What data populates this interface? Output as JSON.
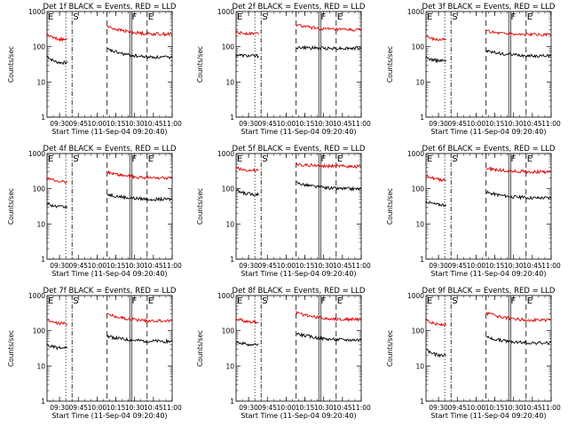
{
  "figure": {
    "panels_per_row": 3
  },
  "chart_data": [
    {
      "type": "line",
      "title": "Det 1f BLACK = Events, RED = LLD",
      "xlabel": "Start Time (11-Sep-04 09:20:40)",
      "ylabel": "Counts/sec",
      "y_scale": "log",
      "ylim": [
        1,
        1000
      ],
      "xlim": [
        "09:20",
        "11:00"
      ],
      "x_ticks": [
        "09:30",
        "09:45",
        "10:00",
        "10:15",
        "10:30",
        "10:45",
        "11:00"
      ],
      "y_ticks": [
        "1",
        "10",
        "100",
        "1000"
      ],
      "grid": false,
      "markers": [
        {
          "label": "E",
          "time": "09:20",
          "style": "solid"
        },
        {
          "label": "S",
          "time": "09:40",
          "style": "dash-dot"
        },
        {
          "label": "F",
          "time": "10:27",
          "style": "solid"
        },
        {
          "label": "E",
          "time": "10:40",
          "style": "dashed"
        }
      ],
      "vlines": [
        {
          "time": "09:35",
          "style": "dotted"
        },
        {
          "time": "09:40",
          "style": "dash-dot"
        },
        {
          "time": "10:08",
          "style": "dashed"
        },
        {
          "time": "10:27",
          "style": "double"
        },
        {
          "time": "10:40",
          "style": "dashed"
        }
      ],
      "series": [
        {
          "color": "#000000",
          "segments": [
            {
              "from": "09:20",
              "to": "09:36",
              "start": 55,
              "end": 35
            },
            {
              "from": "10:08",
              "to": "11:00",
              "start": 85,
              "end": 50
            }
          ]
        },
        {
          "color": "#e00000",
          "segments": [
            {
              "from": "09:20",
              "to": "09:36",
              "start": 230,
              "end": 160
            },
            {
              "from": "10:08",
              "to": "11:00",
              "start": 380,
              "end": 230
            }
          ]
        }
      ]
    },
    {
      "type": "line",
      "title": "Det 2f BLACK = Events, RED = LLD",
      "xlabel": "Start Time (11-Sep-04 09:20:40)",
      "ylabel": "Counts/sec",
      "y_scale": "log",
      "ylim": [
        1,
        1000
      ],
      "xlim": [
        "09:20",
        "11:00"
      ],
      "x_ticks": [
        "09:30",
        "09:45",
        "10:00",
        "10:15",
        "10:30",
        "10:45",
        "11:00"
      ],
      "y_ticks": [
        "1",
        "10",
        "100",
        "1000"
      ],
      "grid": false,
      "markers": [
        {
          "label": "E",
          "time": "09:20",
          "style": "solid"
        },
        {
          "label": "S",
          "time": "09:40",
          "style": "dash-dot"
        },
        {
          "label": "F",
          "time": "10:27",
          "style": "solid"
        },
        {
          "label": "E",
          "time": "10:40",
          "style": "dashed"
        }
      ],
      "vlines": [
        {
          "time": "09:35",
          "style": "dotted"
        },
        {
          "time": "09:40",
          "style": "dash-dot"
        },
        {
          "time": "10:08",
          "style": "dashed"
        },
        {
          "time": "10:27",
          "style": "double"
        },
        {
          "time": "10:40",
          "style": "dashed"
        }
      ],
      "series": [
        {
          "color": "#000000",
          "segments": [
            {
              "from": "09:20",
              "to": "09:38",
              "start": 60,
              "end": 55
            },
            {
              "from": "10:08",
              "to": "11:00",
              "start": 95,
              "end": 90
            }
          ]
        },
        {
          "color": "#e00000",
          "segments": [
            {
              "from": "09:20",
              "to": "09:38",
              "start": 250,
              "end": 240
            },
            {
              "from": "10:08",
              "to": "11:00",
              "start": 420,
              "end": 300
            }
          ]
        }
      ]
    },
    {
      "type": "line",
      "title": "Det 3f BLACK = Events, RED = LLD",
      "xlabel": "Start Time (11-Sep-04 09:20:40)",
      "ylabel": "Counts/sec",
      "y_scale": "log",
      "ylim": [
        1,
        1000
      ],
      "xlim": [
        "09:20",
        "11:00"
      ],
      "x_ticks": [
        "09:30",
        "09:45",
        "10:00",
        "10:15",
        "10:30",
        "10:45",
        "11:00"
      ],
      "y_ticks": [
        "1",
        "10",
        "100",
        "1000"
      ],
      "grid": false,
      "markers": [
        {
          "label": "E",
          "time": "09:20",
          "style": "solid"
        },
        {
          "label": "S",
          "time": "09:40",
          "style": "dash-dot"
        },
        {
          "label": "F",
          "time": "10:27",
          "style": "solid"
        },
        {
          "label": "E",
          "time": "10:40",
          "style": "dashed"
        }
      ],
      "vlines": [
        {
          "time": "09:35",
          "style": "dotted"
        },
        {
          "time": "09:40",
          "style": "dash-dot"
        },
        {
          "time": "10:08",
          "style": "dashed"
        },
        {
          "time": "10:27",
          "style": "double"
        },
        {
          "time": "10:40",
          "style": "dashed"
        }
      ],
      "series": [
        {
          "color": "#000000",
          "segments": [
            {
              "from": "09:20",
              "to": "09:36",
              "start": 50,
              "end": 40
            },
            {
              "from": "10:08",
              "to": "11:00",
              "start": 75,
              "end": 55
            }
          ]
        },
        {
          "color": "#e00000",
          "segments": [
            {
              "from": "09:20",
              "to": "09:36",
              "start": 200,
              "end": 160
            },
            {
              "from": "10:08",
              "to": "11:00",
              "start": 280,
              "end": 220
            }
          ]
        }
      ]
    },
    {
      "type": "line",
      "title": "Det 4f BLACK = Events, RED = LLD",
      "xlabel": "Start Time (11-Sep-04 09:20:40)",
      "ylabel": "Counts/sec",
      "y_scale": "log",
      "ylim": [
        1,
        1000
      ],
      "xlim": [
        "09:20",
        "11:00"
      ],
      "x_ticks": [
        "09:30",
        "09:45",
        "10:00",
        "10:15",
        "10:30",
        "10:45",
        "11:00"
      ],
      "y_ticks": [
        "1",
        "10",
        "100",
        "1000"
      ],
      "grid": false,
      "markers": [
        {
          "label": "E",
          "time": "09:20",
          "style": "solid"
        },
        {
          "label": "S",
          "time": "09:40",
          "style": "dash-dot"
        },
        {
          "label": "F",
          "time": "10:27",
          "style": "solid"
        },
        {
          "label": "E",
          "time": "10:40",
          "style": "dashed"
        }
      ],
      "vlines": [
        {
          "time": "09:35",
          "style": "dotted"
        },
        {
          "time": "09:40",
          "style": "dash-dot"
        },
        {
          "time": "10:08",
          "style": "dashed"
        },
        {
          "time": "10:27",
          "style": "double"
        },
        {
          "time": "10:40",
          "style": "dashed"
        }
      ],
      "series": [
        {
          "color": "#000000",
          "segments": [
            {
              "from": "09:20",
              "to": "09:36",
              "start": 40,
              "end": 30
            },
            {
              "from": "10:08",
              "to": "11:00",
              "start": 70,
              "end": 50
            }
          ]
        },
        {
          "color": "#e00000",
          "segments": [
            {
              "from": "09:20",
              "to": "09:36",
              "start": 210,
              "end": 160
            },
            {
              "from": "10:08",
              "to": "11:00",
              "start": 300,
              "end": 200
            }
          ]
        }
      ]
    },
    {
      "type": "line",
      "title": "Det 5f BLACK = Events, RED = LLD",
      "xlabel": "Start Time (11-Sep-04 09:20:40)",
      "ylabel": "Counts/sec",
      "y_scale": "log",
      "ylim": [
        1,
        1000
      ],
      "xlim": [
        "09:20",
        "11:00"
      ],
      "x_ticks": [
        "09:30",
        "09:45",
        "10:00",
        "10:15",
        "10:30",
        "10:45",
        "11:00"
      ],
      "y_ticks": [
        "1",
        "10",
        "100",
        "1000"
      ],
      "grid": false,
      "markers": [
        {
          "label": "E",
          "time": "09:20",
          "style": "solid"
        },
        {
          "label": "S",
          "time": "09:40",
          "style": "dash-dot"
        },
        {
          "label": "F",
          "time": "10:27",
          "style": "solid"
        },
        {
          "label": "E",
          "time": "10:40",
          "style": "dashed"
        }
      ],
      "vlines": [
        {
          "time": "09:35",
          "style": "dotted"
        },
        {
          "time": "09:40",
          "style": "dash-dot"
        },
        {
          "time": "10:08",
          "style": "dashed"
        },
        {
          "time": "10:27",
          "style": "double"
        },
        {
          "time": "10:40",
          "style": "dashed"
        }
      ],
      "series": [
        {
          "color": "#000000",
          "segments": [
            {
              "from": "09:20",
              "to": "09:38",
              "start": 90,
              "end": 70
            },
            {
              "from": "10:08",
              "to": "11:00",
              "start": 150,
              "end": 100
            }
          ]
        },
        {
          "color": "#e00000",
          "segments": [
            {
              "from": "09:20",
              "to": "09:38",
              "start": 400,
              "end": 330
            },
            {
              "from": "10:08",
              "to": "11:00",
              "start": 500,
              "end": 430
            }
          ]
        }
      ]
    },
    {
      "type": "line",
      "title": "Det 6f BLACK = Events, RED = LLD",
      "xlabel": "Start Time (11-Sep-04 09:20:40)",
      "ylabel": "Counts/sec",
      "y_scale": "log",
      "ylim": [
        1,
        1000
      ],
      "xlim": [
        "09:20",
        "11:00"
      ],
      "x_ticks": [
        "09:30",
        "09:45",
        "10:00",
        "10:15",
        "10:30",
        "10:45",
        "11:00"
      ],
      "y_ticks": [
        "1",
        "10",
        "100",
        "1000"
      ],
      "grid": false,
      "markers": [
        {
          "label": "E",
          "time": "09:20",
          "style": "solid"
        },
        {
          "label": "S",
          "time": "09:40",
          "style": "dash-dot"
        },
        {
          "label": "F",
          "time": "10:27",
          "style": "solid"
        },
        {
          "label": "E",
          "time": "10:40",
          "style": "dashed"
        }
      ],
      "vlines": [
        {
          "time": "09:35",
          "style": "dotted"
        },
        {
          "time": "09:40",
          "style": "dash-dot"
        },
        {
          "time": "10:08",
          "style": "dashed"
        },
        {
          "time": "10:27",
          "style": "double"
        },
        {
          "time": "10:40",
          "style": "dashed"
        }
      ],
      "series": [
        {
          "color": "#000000",
          "segments": [
            {
              "from": "09:20",
              "to": "09:36",
              "start": 45,
              "end": 35
            },
            {
              "from": "10:08",
              "to": "11:00",
              "start": 80,
              "end": 55
            }
          ]
        },
        {
          "color": "#e00000",
          "segments": [
            {
              "from": "09:20",
              "to": "09:36",
              "start": 260,
              "end": 180
            },
            {
              "from": "10:08",
              "to": "11:00",
              "start": 380,
              "end": 300
            }
          ]
        }
      ]
    },
    {
      "type": "line",
      "title": "Det 7f BLACK = Events, RED = LLD",
      "xlabel": "Start Time (11-Sep-04 09:20:40)",
      "ylabel": "Counts/sec",
      "y_scale": "log",
      "ylim": [
        1,
        1000
      ],
      "xlim": [
        "09:20",
        "11:00"
      ],
      "x_ticks": [
        "09:30",
        "09:45",
        "10:00",
        "10:15",
        "10:30",
        "10:45",
        "11:00"
      ],
      "y_ticks": [
        "1",
        "10",
        "100",
        "1000"
      ],
      "grid": false,
      "markers": [
        {
          "label": "E",
          "time": "09:20",
          "style": "solid"
        },
        {
          "label": "S",
          "time": "09:40",
          "style": "dash-dot"
        },
        {
          "label": "F",
          "time": "10:27",
          "style": "solid"
        },
        {
          "label": "E",
          "time": "10:40",
          "style": "dashed"
        }
      ],
      "vlines": [
        {
          "time": "09:35",
          "style": "dotted"
        },
        {
          "time": "09:40",
          "style": "dash-dot"
        },
        {
          "time": "10:08",
          "style": "dashed"
        },
        {
          "time": "10:27",
          "style": "double"
        },
        {
          "time": "10:40",
          "style": "dashed"
        }
      ],
      "series": [
        {
          "color": "#000000",
          "segments": [
            {
              "from": "09:20",
              "to": "09:36",
              "start": 40,
              "end": 32
            },
            {
              "from": "10:08",
              "to": "11:00",
              "start": 70,
              "end": 50
            }
          ]
        },
        {
          "color": "#e00000",
          "segments": [
            {
              "from": "09:20",
              "to": "09:36",
              "start": 210,
              "end": 160
            },
            {
              "from": "10:08",
              "to": "11:00",
              "start": 300,
              "end": 190
            }
          ]
        }
      ]
    },
    {
      "type": "line",
      "title": "Det 8f BLACK = Events, RED = LLD",
      "xlabel": "Start Time (11-Sep-04 09:20:40)",
      "ylabel": "Counts/sec",
      "y_scale": "log",
      "ylim": [
        1,
        1000
      ],
      "xlim": [
        "09:20",
        "11:00"
      ],
      "x_ticks": [
        "09:30",
        "09:45",
        "10:00",
        "10:15",
        "10:30",
        "10:45",
        "11:00"
      ],
      "y_ticks": [
        "1",
        "10",
        "100",
        "1000"
      ],
      "grid": false,
      "markers": [
        {
          "label": "E",
          "time": "09:20",
          "style": "solid"
        },
        {
          "label": "S",
          "time": "09:40",
          "style": "dash-dot"
        },
        {
          "label": "F",
          "time": "10:27",
          "style": "solid"
        },
        {
          "label": "E",
          "time": "10:40",
          "style": "dashed"
        }
      ],
      "vlines": [
        {
          "time": "09:35",
          "style": "dotted"
        },
        {
          "time": "09:40",
          "style": "dash-dot"
        },
        {
          "time": "10:08",
          "style": "dashed"
        },
        {
          "time": "10:27",
          "style": "double"
        },
        {
          "time": "10:40",
          "style": "dashed"
        }
      ],
      "series": [
        {
          "color": "#000000",
          "segments": [
            {
              "from": "09:20",
              "to": "09:38",
              "start": 50,
              "end": 40
            },
            {
              "from": "10:08",
              "to": "11:00",
              "start": 85,
              "end": 55
            }
          ]
        },
        {
          "color": "#e00000",
          "segments": [
            {
              "from": "09:20",
              "to": "09:38",
              "start": 230,
              "end": 180
            },
            {
              "from": "10:08",
              "to": "11:00",
              "start": 330,
              "end": 210
            }
          ]
        }
      ]
    },
    {
      "type": "line",
      "title": "Det 9f BLACK = Events, RED = LLD",
      "xlabel": "Start Time (11-Sep-04 09:20:40)",
      "ylabel": "Counts/sec",
      "y_scale": "log",
      "ylim": [
        1,
        1000
      ],
      "xlim": [
        "09:20",
        "11:00"
      ],
      "x_ticks": [
        "09:30",
        "09:45",
        "10:00",
        "10:15",
        "10:30",
        "10:45",
        "11:00"
      ],
      "y_ticks": [
        "1",
        "10",
        "100",
        "1000"
      ],
      "grid": false,
      "markers": [
        {
          "label": "E",
          "time": "09:20",
          "style": "solid"
        },
        {
          "label": "S",
          "time": "09:40",
          "style": "dash-dot"
        },
        {
          "label": "F",
          "time": "10:27",
          "style": "solid"
        },
        {
          "label": "E",
          "time": "10:40",
          "style": "dashed"
        }
      ],
      "vlines": [
        {
          "time": "09:35",
          "style": "dotted"
        },
        {
          "time": "09:40",
          "style": "dash-dot"
        },
        {
          "time": "10:08",
          "style": "dashed"
        },
        {
          "time": "10:27",
          "style": "double"
        },
        {
          "time": "10:40",
          "style": "dashed"
        }
      ],
      "series": [
        {
          "color": "#000000",
          "segments": [
            {
              "from": "09:20",
              "to": "09:36",
              "start": 30,
              "end": 20
            },
            {
              "from": "10:08",
              "to": "11:00",
              "start": 65,
              "end": 45
            }
          ]
        },
        {
          "color": "#e00000",
          "segments": [
            {
              "from": "09:20",
              "to": "09:36",
              "start": 220,
              "end": 150
            },
            {
              "from": "10:08",
              "to": "11:00",
              "start": 320,
              "end": 200
            }
          ]
        }
      ]
    }
  ]
}
